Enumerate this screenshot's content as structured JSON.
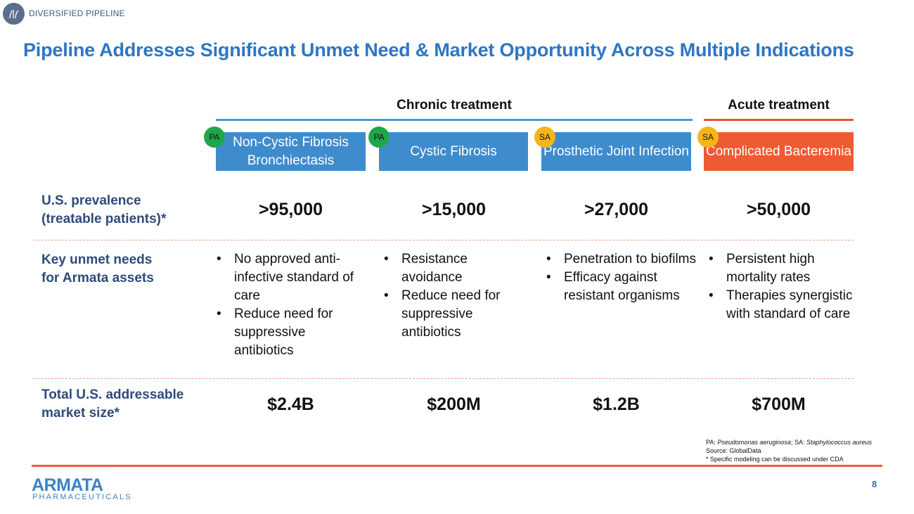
{
  "header": {
    "section_label": "DIVERSIFIED PIPELINE",
    "title": "Pipeline Addresses Significant Unmet Need & Market Opportunity Across Multiple Indications"
  },
  "groups": {
    "chronic": "Chronic treatment",
    "acute": "Acute treatment"
  },
  "colors": {
    "title_blue": "#2d76c4",
    "box_blue": "#3f8ccd",
    "box_red": "#ef5a33",
    "badge_pa": "#1fa84a",
    "badge_sa": "#f6b51b"
  },
  "indications": [
    {
      "badge": "PA",
      "name": "Non-Cystic Fibrosis Bronchiectasis",
      "prevalence": ">95,000",
      "needs": [
        "No approved anti-infective standard of care",
        "Reduce need for suppressive antibiotics"
      ],
      "market": "$2.4B"
    },
    {
      "badge": "PA",
      "name": "Cystic Fibrosis",
      "prevalence": ">15,000",
      "needs": [
        "Resistance avoidance",
        "Reduce need for suppressive antibiotics"
      ],
      "market": "$200M"
    },
    {
      "badge": "SA",
      "name": "Prosthetic Joint Infection",
      "prevalence": ">27,000",
      "needs": [
        "Penetration to biofilms",
        "Efficacy against resistant organisms"
      ],
      "market": "$1.2B"
    },
    {
      "badge": "SA",
      "name": "Complicated Bacteremia",
      "prevalence": ">50,000",
      "needs": [
        "Persistent high mortality rates",
        "Therapies synergistic with standard of care"
      ],
      "market": "$700M"
    }
  ],
  "rows": {
    "prevalence_label_1": "U.S. prevalence",
    "prevalence_label_2": "(treatable patients)*",
    "needs_label_1": "Key unmet needs",
    "needs_label_2": "for Armata assets",
    "market_label_1": "Total U.S. addressable",
    "market_label_2": "market size*"
  },
  "footnotes": {
    "abbrev_pa": "PA:",
    "abbrev_pa_name": "Pseudomonas aeruginosa",
    "abbrev_sa": "; SA:",
    "abbrev_sa_name": "Staphylococcus aureus",
    "source": "Source: GlobalData",
    "modeling": "* Specific modeling can be discussed under CDA"
  },
  "footer": {
    "brand_name": "ARMATA",
    "brand_sub": "PHARMACEUTICALS",
    "page_number": "8"
  }
}
